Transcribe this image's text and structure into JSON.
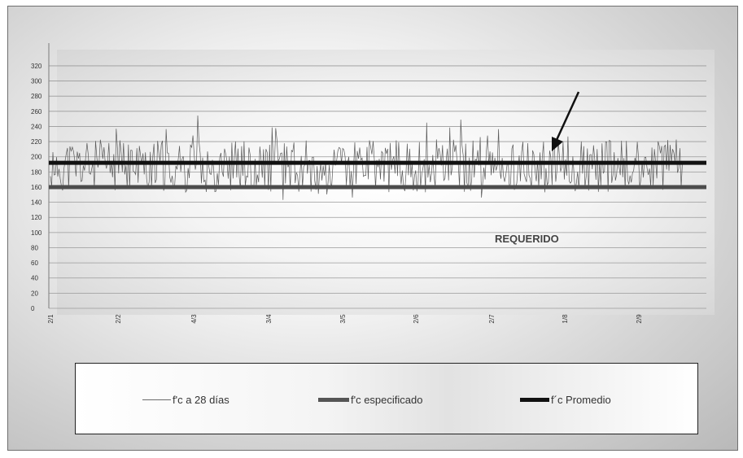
{
  "chart_data": {
    "type": "line",
    "ylim": [
      0,
      350
    ],
    "yticks": [
      0,
      20,
      40,
      60,
      80,
      100,
      120,
      140,
      160,
      180,
      200,
      220,
      240,
      260,
      280,
      300,
      320
    ],
    "ytick_labels": [
      "0",
      "20",
      "40",
      "60",
      "80",
      "100",
      "120",
      "140",
      "160",
      "180",
      "200",
      "220",
      "240",
      "260",
      "280",
      "300",
      "320"
    ],
    "xtick_labels": [
      "2/1",
      "2/2",
      "4/3",
      "3/4",
      "3/5",
      "2/6",
      "2/7",
      "1/8",
      "2/9"
    ],
    "annotation": "REQUERIDO",
    "grid": true,
    "legend_position": "bottom",
    "colors": {
      "measured": "#5a5a5a",
      "specified": "#4c4c4c",
      "average": "#111111"
    },
    "series": [
      {
        "name": "f'c a 28 días",
        "style": "thin-line",
        "summary": {
          "min": 120,
          "max": 255,
          "n_points": 520
        }
      },
      {
        "name": "f'c especificado",
        "style": "thick-grey-line",
        "values": [
          160
        ]
      },
      {
        "name": "f´c Promedio",
        "style": "thick-black-line",
        "values": [
          192
        ]
      }
    ]
  },
  "legend": {
    "items": [
      {
        "label": "f'c a 28 días"
      },
      {
        "label": "f'c especificado"
      },
      {
        "label": "f´c Promedio"
      }
    ]
  }
}
